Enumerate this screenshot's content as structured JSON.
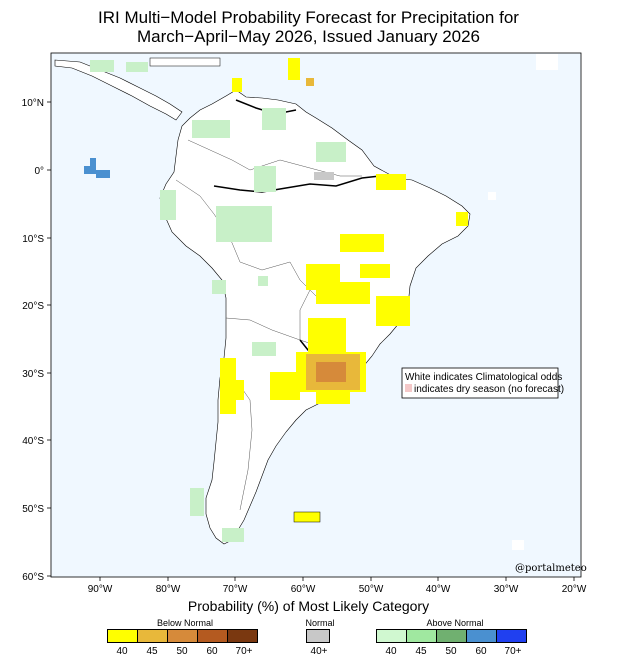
{
  "title": {
    "line1": "IRI Multi−Model Probability Forecast for Precipitation for",
    "line2": "March−April−May 2026, Issued January 2026"
  },
  "map": {
    "lat_labels": [
      "10°N",
      "0°",
      "10°S",
      "20°S",
      "30°S",
      "40°S",
      "50°S",
      "60°S"
    ],
    "lon_labels": [
      "90°W",
      "80°W",
      "70°W",
      "60°W",
      "50°W",
      "40°W",
      "30°W",
      "20°W"
    ],
    "note_line1": "White indicates Climatological odds",
    "note_line2": "indicates dry season (no forecast)",
    "credit": "@portalmeteo",
    "colors": {
      "ocean": "#f0f8ff",
      "land": "#ffffff",
      "below40": "#ffff00",
      "below45": "#e8b83a",
      "below50": "#d68a3a",
      "above40": "#c8f0c8",
      "above60": "#4a90d0",
      "dry_season": "#f4c8c8"
    }
  },
  "legend": {
    "title": "Probability (%) of Most Likely Category",
    "below": {
      "label": "Below Normal",
      "colors": [
        "#ffff00",
        "#e8b83a",
        "#d68a3a",
        "#b45a20",
        "#7a3810"
      ],
      "ticks": [
        "40",
        "45",
        "50",
        "60",
        "70+"
      ]
    },
    "normal": {
      "label": "Normal",
      "colors": [
        "#c8c8c8"
      ],
      "ticks": [
        "40+"
      ]
    },
    "above": {
      "label": "Above Normal",
      "colors": [
        "#d0f8d0",
        "#a0e8a0",
        "#70b070",
        "#4a90d0",
        "#2040f0"
      ],
      "ticks": [
        "40",
        "45",
        "50",
        "60",
        "70+"
      ]
    }
  }
}
